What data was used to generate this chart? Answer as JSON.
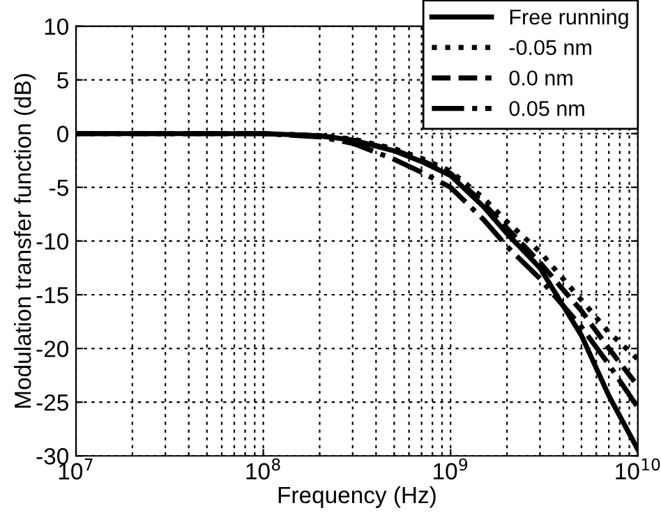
{
  "chart_data": {
    "type": "line",
    "xlabel": "Frequency (Hz)",
    "ylabel": "Modulation transfer function (dB)",
    "log": "x",
    "grid": true,
    "legend": "top right",
    "xlim": [
      10000000.0,
      10000000000.0
    ],
    "ylim": [
      -30,
      10
    ],
    "xticks": [
      {
        "value": 10000000.0,
        "label": "10$^{7}$"
      },
      {
        "value": 100000000.0,
        "label": "10$^{8}$"
      },
      {
        "value": 1000000000.0,
        "label": "10$^{9}$"
      },
      {
        "value": 10000000000.0,
        "label": "10$^{10}$"
      }
    ],
    "yticks": [
      -30,
      -25,
      -20,
      -15,
      -10,
      -5,
      0,
      5,
      10
    ],
    "x": [
      10000000.0,
      100000000.0,
      200000000.0,
      300000000.0,
      500000000.0,
      700000000.0,
      1000000000.0,
      1500000000.0,
      2000000000.0,
      3000000000.0,
      5000000000.0,
      7000000000.0,
      10000000000.0
    ],
    "series": [
      {
        "name": "Free running",
        "color": "#000000",
        "line_style": "solid",
        "values": [
          0,
          0,
          -0.2,
          -0.6,
          -1.6,
          -2.6,
          -3.9,
          -6.8,
          -9.3,
          -12.5,
          -18.8,
          -24.4,
          -29.4
        ]
      },
      {
        "name": "-0.05 nm",
        "color": "#000000",
        "line_style": "dotted",
        "values": [
          0,
          0,
          -0.2,
          -0.5,
          -1.4,
          -2.3,
          -3.5,
          -6,
          -8.2,
          -11,
          -15.5,
          -18.5,
          -21
        ]
      },
      {
        "name": "0.0 nm",
        "color": "#000000",
        "line_style": "dashed",
        "values": [
          0,
          0,
          -0.2,
          -0.6,
          -1.5,
          -2.5,
          -3.7,
          -6.5,
          -8.8,
          -12,
          -16.5,
          -20,
          -23.5
        ]
      },
      {
        "name": "0.05 nm",
        "color": "#000000",
        "line_style": "dashdot",
        "values": [
          0,
          0,
          -0.3,
          -0.9,
          -2.4,
          -3.6,
          -5,
          -8,
          -10.5,
          -13.5,
          -18,
          -21.5,
          -25.5
        ]
      }
    ]
  }
}
